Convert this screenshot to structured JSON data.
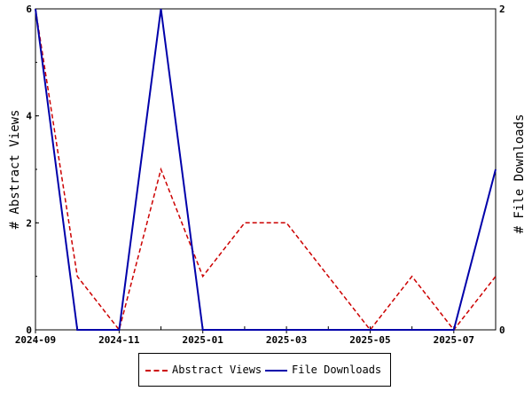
{
  "chart_data": {
    "type": "line",
    "x": [
      "2024-09",
      "2024-10",
      "2024-11",
      "2024-12",
      "2025-01",
      "2025-02",
      "2025-03",
      "2025-04",
      "2025-05",
      "2025-06",
      "2025-07",
      "2025-08"
    ],
    "x_tick_labels": [
      "2024-09",
      "2024-11",
      "2025-01",
      "2025-03",
      "2025-05",
      "2025-07"
    ],
    "xlim": [
      "2024-09",
      "2025-08"
    ],
    "ylabel": "# Abstract Views",
    "y2label": "# File Downloads",
    "ylim": [
      0,
      6
    ],
    "y2lim": [
      0,
      2
    ],
    "y_ticks": [
      "0",
      "2",
      "4",
      "6"
    ],
    "y2_ticks": [
      "0",
      "2"
    ],
    "legend_position": "bottom",
    "series": [
      {
        "name": "Abstract Views",
        "axis": "left",
        "color": "#cc0000",
        "style": "dashed",
        "values": [
          6,
          1,
          0,
          3,
          1,
          2,
          2,
          1,
          0,
          1,
          0,
          1
        ]
      },
      {
        "name": "File Downloads",
        "axis": "right",
        "color": "#0000aa",
        "style": "solid",
        "values": [
          2,
          0,
          0,
          2,
          0,
          0,
          0,
          0,
          0,
          0,
          0,
          1
        ]
      }
    ]
  }
}
